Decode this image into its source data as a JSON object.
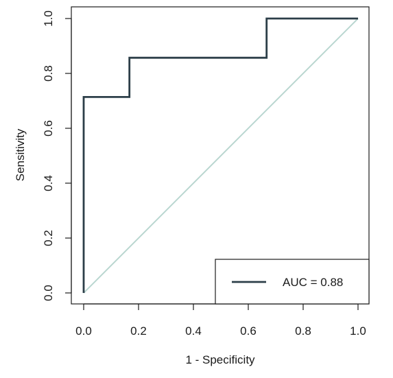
{
  "chart_data": {
    "type": "line",
    "xlabel": "1 - Specificity",
    "ylabel": "Sensitivity",
    "xlim": [
      0.0,
      1.0
    ],
    "ylim": [
      0.0,
      1.0
    ],
    "xticks": [
      "0.0",
      "0.2",
      "0.4",
      "0.6",
      "0.8",
      "1.0"
    ],
    "yticks": [
      "0.0",
      "0.2",
      "0.4",
      "0.6",
      "0.8",
      "1.0"
    ],
    "grid": false,
    "legend_position": "bottom-right",
    "series": [
      {
        "name": "AUC = 0.88",
        "color": "#2c3e48",
        "x": [
          0.0,
          0.0,
          0.1667,
          0.1667,
          0.6667,
          0.6667,
          1.0
        ],
        "y": [
          0.0,
          0.714,
          0.714,
          0.857,
          0.857,
          1.0,
          1.0
        ]
      },
      {
        "color": "#b9d6d0",
        "x": [
          0.0,
          1.0
        ],
        "y": [
          0.0,
          1.0
        ]
      }
    ]
  }
}
